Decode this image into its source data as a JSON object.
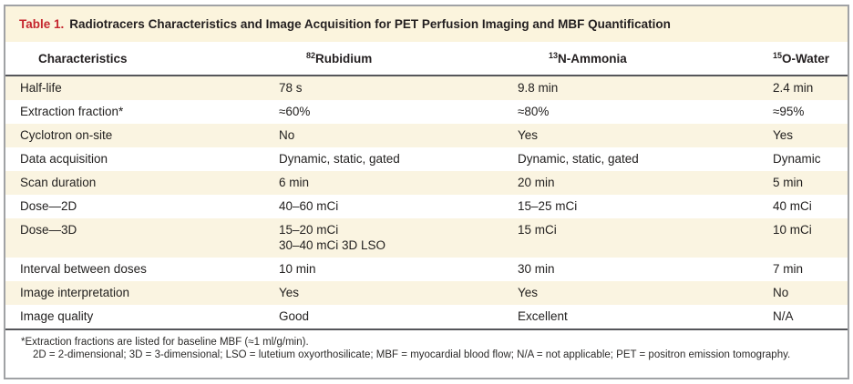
{
  "table": {
    "label": "Table 1.",
    "title": "Radiotracers Characteristics and Image Acquisition for PET Perfusion Imaging and MBF Quantification",
    "columns": [
      {
        "sup": "",
        "name": "Characteristics"
      },
      {
        "sup": "82",
        "name": "Rubidium"
      },
      {
        "sup": "13",
        "name": "N-Ammonia"
      },
      {
        "sup": "15",
        "name": "O-Water"
      }
    ],
    "rows": [
      {
        "label": "Half-life",
        "rubidium": "78 s",
        "ammonia": "9.8 min",
        "water": "2.4 min"
      },
      {
        "label": "Extraction fraction*",
        "rubidium": "≈60%",
        "ammonia": "≈80%",
        "water": "≈95%"
      },
      {
        "label": "Cyclotron on-site",
        "rubidium": "No",
        "ammonia": "Yes",
        "water": "Yes"
      },
      {
        "label": "Data acquisition",
        "rubidium": "Dynamic, static, gated",
        "ammonia": "Dynamic, static, gated",
        "water": "Dynamic"
      },
      {
        "label": "Scan duration",
        "rubidium": "6 min",
        "ammonia": "20 min",
        "water": "5 min"
      },
      {
        "label": "Dose—2D",
        "rubidium": "40–60 mCi",
        "ammonia": "15–25 mCi",
        "water": "40 mCi"
      },
      {
        "label": "Dose—3D",
        "rubidium": "15–20 mCi",
        "rubidium_line2": "30–40 mCi 3D LSO",
        "ammonia": "15 mCi",
        "water": "10 mCi"
      },
      {
        "label": "Interval between doses",
        "rubidium": "10 min",
        "ammonia": "30 min",
        "water": "7 min"
      },
      {
        "label": "Image interpretation",
        "rubidium": "Yes",
        "ammonia": "Yes",
        "water": "No"
      },
      {
        "label": "Image quality",
        "rubidium": "Good",
        "ammonia": "Excellent",
        "water": "N/A"
      }
    ],
    "footnotes": {
      "line1": "*Extraction fractions are listed for baseline MBF (≈1 ml/g/min).",
      "line2": "2D = 2-dimensional; 3D = 3-dimensional; LSO = lutetium oxyorthosilicate; MBF = myocardial blood flow; N/A = not applicable; PET = positron emission tomography."
    },
    "colors": {
      "accent_red": "#c5262e",
      "title_cream": "#fbf4dd",
      "row_cream": "#faf4e1",
      "rule_dark": "#55565a",
      "border_gray": "#a0a2a5",
      "text": "#231f20"
    }
  }
}
